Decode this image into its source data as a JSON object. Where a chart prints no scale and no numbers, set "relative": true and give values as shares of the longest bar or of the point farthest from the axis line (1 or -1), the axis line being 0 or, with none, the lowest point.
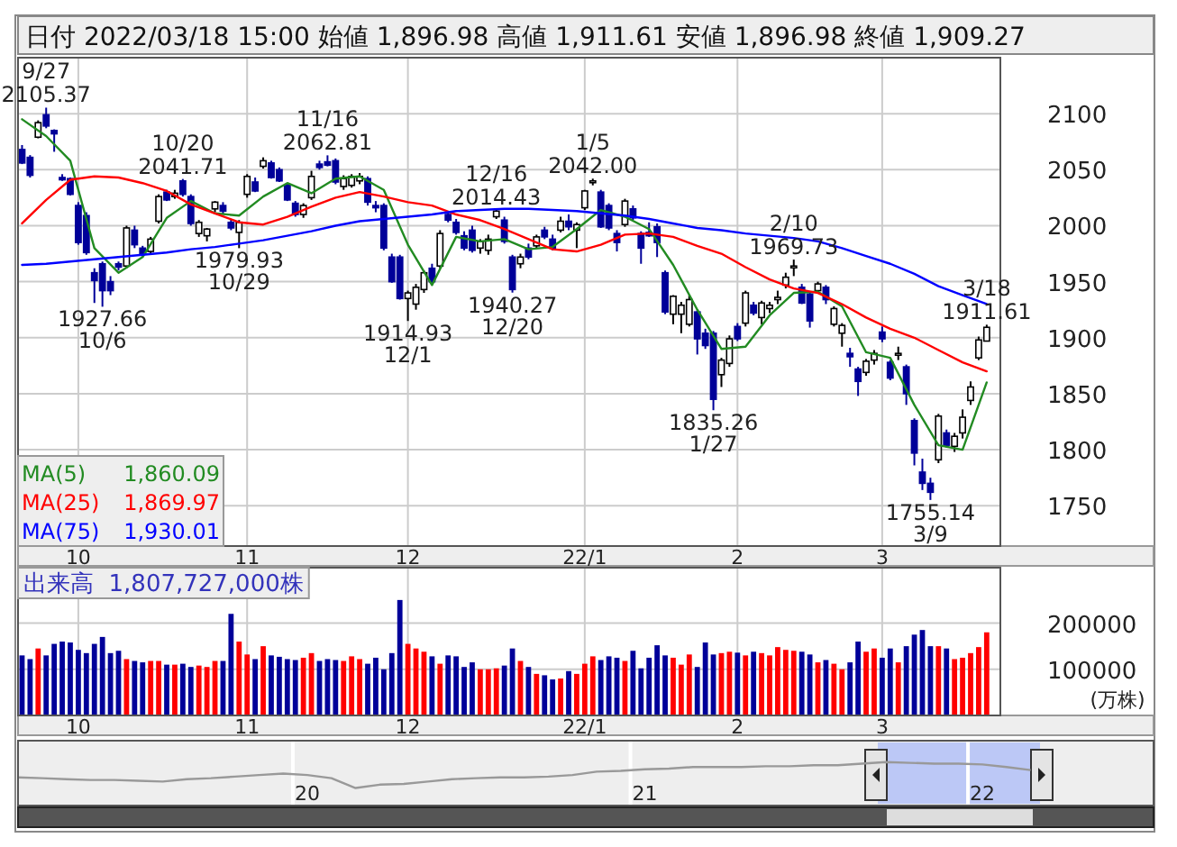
{
  "chart_data": [
    {
      "type": "candlestick",
      "title": "日付 2022/03/18 15:00 始値 1,896.98 高値 1,911.61 安値 1,896.98 終値 1,909.27",
      "categories": [
        null,
        null,
        null,
        null,
        null,
        null,
        null,
        "10",
        null,
        null,
        null,
        null,
        null,
        null,
        null,
        null,
        null,
        null,
        null,
        null,
        null,
        null,
        null,
        null,
        null,
        null,
        null,
        null,
        "11",
        null,
        null,
        null,
        null,
        null,
        null,
        null,
        null,
        null,
        null,
        null,
        null,
        null,
        null,
        null,
        null,
        null,
        null,
        null,
        "12",
        null,
        null,
        null,
        null,
        null,
        null,
        null,
        null,
        null,
        null,
        null,
        null,
        null,
        null,
        null,
        null,
        null,
        null,
        null,
        null,
        null,
        "22/1",
        null,
        null,
        null,
        null,
        null,
        null,
        null,
        null,
        null,
        null,
        null,
        null,
        null,
        null,
        null,
        null,
        null,
        null,
        "2",
        null,
        null,
        null,
        null,
        null,
        null,
        null,
        null,
        null,
        null,
        null,
        null,
        null,
        null,
        null,
        null,
        null,
        "3",
        null,
        null,
        null,
        null,
        null,
        null,
        null,
        null,
        null,
        null,
        null,
        null,
        null
      ],
      "ohlc": [
        [
          2068,
          2072,
          2055,
          2056
        ],
        [
          2061,
          2063,
          2043,
          2045
        ],
        [
          2079,
          2094,
          2078,
          2092
        ],
        [
          2099,
          2105.37,
          2087,
          2089
        ],
        [
          2085,
          2086,
          2066,
          2082
        ],
        [
          2043,
          2046,
          2040,
          2041
        ],
        [
          2042,
          2043,
          2027,
          2028
        ],
        [
          2018,
          2021,
          1983,
          1985
        ],
        [
          2009,
          2012,
          1974,
          1976
        ],
        [
          1958,
          1962,
          1931,
          1951
        ],
        [
          1966,
          1968,
          1927.66,
          1942
        ],
        [
          1950,
          1955,
          1938,
          1942
        ],
        [
          1966,
          1968,
          1960,
          1963
        ],
        [
          1964,
          2000,
          1962,
          1998
        ],
        [
          1996,
          2000,
          1980,
          1983
        ],
        [
          1980,
          1982,
          1972,
          1975
        ],
        [
          1977,
          1990,
          1975,
          1988
        ],
        [
          2004,
          2028,
          2002,
          2026
        ],
        [
          2030,
          2032,
          2022,
          2023
        ],
        [
          2026,
          2032,
          2024,
          2029
        ],
        [
          2040,
          2041.71,
          2026,
          2028
        ],
        [
          2026,
          2028,
          2000,
          2002
        ],
        [
          1993,
          2005,
          1990,
          2003
        ],
        [
          1991,
          1998,
          1986,
          1997
        ],
        [
          2015,
          2022,
          2012,
          2021
        ],
        [
          2018,
          2021,
          2010,
          2013
        ],
        [
          2003,
          2006,
          1996,
          1998
        ],
        [
          1994,
          2005,
          1979.93,
          2003
        ],
        [
          2028,
          2046,
          2025,
          2044
        ],
        [
          2039,
          2043,
          2030,
          2031
        ],
        [
          2053,
          2061,
          2051,
          2058
        ],
        [
          2056,
          2058,
          2042,
          2043
        ],
        [
          2050,
          2052,
          2039,
          2040
        ],
        [
          2036,
          2038,
          2022,
          2023
        ],
        [
          2020,
          2022,
          2008,
          2010
        ],
        [
          2010,
          2020,
          2007,
          2018
        ],
        [
          2025,
          2049,
          2023,
          2044
        ],
        [
          2055,
          2058,
          2050,
          2052
        ],
        [
          2057,
          2062.81,
          2053,
          2054
        ],
        [
          2058,
          2060,
          2037,
          2039
        ],
        [
          2035,
          2045,
          2032,
          2042
        ],
        [
          2036,
          2046,
          2034,
          2044
        ],
        [
          2040,
          2047,
          2037,
          2044
        ],
        [
          2042,
          2044,
          2018,
          2021
        ],
        [
          2018,
          2022,
          2012,
          2016
        ],
        [
          2018,
          2020,
          1978,
          1980
        ],
        [
          1972,
          1975,
          1949,
          1950
        ],
        [
          1972,
          1974,
          1934,
          1935
        ],
        [
          1935,
          1942,
          1914.93,
          1940
        ],
        [
          1930,
          1948,
          1925,
          1945
        ],
        [
          1943,
          1960,
          1940,
          1958
        ],
        [
          1962,
          1966,
          1948,
          1950
        ],
        [
          1964,
          1996,
          1962,
          1993
        ],
        [
          2010,
          2012,
          2003,
          2005
        ],
        [
          2003,
          2006,
          1992,
          1994
        ],
        [
          1991,
          1995,
          1978,
          1980
        ],
        [
          1996,
          2000,
          1976,
          1978
        ],
        [
          1980,
          1988,
          1975,
          1986
        ],
        [
          1978,
          1992,
          1974,
          1988
        ],
        [
          2008,
          2014.43,
          2006,
          2013
        ],
        [
          2005,
          2008,
          1984,
          1986
        ],
        [
          1972,
          1974,
          1940.27,
          1943
        ],
        [
          1966,
          1975,
          1962,
          1972
        ],
        [
          1980,
          1984,
          1970,
          1972
        ],
        [
          1982,
          1992,
          1980,
          1990
        ],
        [
          1996,
          1999,
          1988,
          1990
        ],
        [
          1988,
          1992,
          1978,
          1980
        ],
        [
          1996,
          2008,
          1994,
          2004
        ],
        [
          2004,
          2010,
          1996,
          1999
        ],
        [
          1996,
          2003,
          1980,
          2001
        ],
        [
          2016,
          2032,
          2014,
          2031
        ],
        [
          2039,
          2042,
          2036,
          2040
        ],
        [
          2030,
          2032,
          1998,
          1999
        ],
        [
          2018,
          2020,
          1996,
          1998
        ],
        [
          1993,
          1996,
          1977,
          1985
        ],
        [
          2001,
          2024,
          1999,
          2022
        ],
        [
          2015,
          2018,
          2005,
          2007
        ],
        [
          1993,
          1995,
          1966,
          1980
        ],
        [
          1994,
          2003,
          1990,
          1991
        ],
        [
          1999,
          2002,
          1972,
          1985
        ],
        [
          1958,
          1960,
          1921,
          1923
        ],
        [
          1921,
          1938,
          1912,
          1937
        ],
        [
          1921,
          1932,
          1904,
          1929
        ],
        [
          1912,
          1938,
          1910,
          1934
        ],
        [
          1923,
          1925,
          1885,
          1899
        ],
        [
          1904,
          1908,
          1890,
          1893
        ],
        [
          1904,
          1906,
          1835.26,
          1845
        ],
        [
          1867,
          1882,
          1856,
          1880
        ],
        [
          1877,
          1902,
          1874,
          1899
        ],
        [
          1910,
          1913,
          1897,
          1899
        ],
        [
          1913,
          1942,
          1910,
          1940
        ],
        [
          1929,
          1932,
          1920,
          1922
        ],
        [
          1918,
          1933,
          1912,
          1931
        ],
        [
          1926,
          1932,
          1922,
          1929
        ],
        [
          1934,
          1942,
          1930,
          1936
        ],
        [
          1947,
          1958,
          1944,
          1954
        ],
        [
          1963,
          1969.73,
          1955,
          1964
        ],
        [
          1945,
          1948,
          1930,
          1931
        ],
        [
          1939,
          1941,
          1909,
          1915
        ],
        [
          1942,
          1950,
          1940,
          1948
        ],
        [
          1945,
          1947,
          1930,
          1934
        ],
        [
          1912,
          1928,
          1910,
          1926
        ],
        [
          1904,
          1913,
          1892,
          1911
        ],
        [
          1886,
          1891,
          1874,
          1883
        ],
        [
          1872,
          1874,
          1848,
          1861
        ],
        [
          1869,
          1881,
          1866,
          1879
        ],
        [
          1880,
          1889,
          1876,
          1886
        ],
        [
          1905,
          1910,
          1896,
          1899
        ],
        [
          1878,
          1880,
          1862,
          1864
        ],
        [
          1885,
          1892,
          1880,
          1886
        ],
        [
          1874,
          1876,
          1840,
          1850
        ],
        [
          1826,
          1828,
          1786,
          1797
        ],
        [
          1780,
          1792,
          1764,
          1770
        ],
        [
          1770,
          1775,
          1755.14,
          1762
        ],
        [
          1791,
          1832,
          1788,
          1830
        ],
        [
          1815,
          1818,
          1802,
          1804
        ],
        [
          1803,
          1815,
          1798,
          1812
        ],
        [
          1815,
          1836,
          1810,
          1829
        ],
        [
          1844,
          1861,
          1840,
          1856
        ],
        [
          1882,
          1901,
          1880,
          1898
        ],
        [
          1896.98,
          1911.61,
          1896.98,
          1909.27
        ]
      ],
      "colors": [
        "#000099",
        "#000099",
        "#ffffff",
        "#000099",
        "#000099",
        "#000099",
        "#000099",
        "#000099",
        "#000099",
        "#000099",
        "#000099",
        "#000099",
        "#000099",
        "#ffffff",
        "#000099",
        "#000099",
        "#ffffff",
        "#ffffff",
        "#000099",
        "#ffffff",
        "#000099",
        "#000099",
        "#ffffff",
        "#ffffff",
        "#ffffff",
        "#000099",
        "#000099",
        "#ffffff",
        "#ffffff",
        "#000099",
        "#ffffff",
        "#000099",
        "#000099",
        "#000099",
        "#000099",
        "#ffffff",
        "#ffffff",
        "#000099",
        "#000099",
        "#000099",
        "#ffffff",
        "#ffffff",
        "#ffffff",
        "#000099",
        "#000099",
        "#000099",
        "#000099",
        "#000099",
        "#ffffff",
        "#ffffff",
        "#ffffff",
        "#000099",
        "#ffffff",
        "#000099",
        "#000099",
        "#000099",
        "#000099",
        "#ffffff",
        "#ffffff",
        "#ffffff",
        "#000099",
        "#000099",
        "#ffffff",
        "#000099",
        "#ffffff",
        "#000099",
        "#000099",
        "#ffffff",
        "#000099",
        "#ffffff",
        "#ffffff",
        "#ffffff",
        "#000099",
        "#000099",
        "#000099",
        "#ffffff",
        "#000099",
        "#000099",
        "#000099",
        "#000099",
        "#000099",
        "#ffffff",
        "#ffffff",
        "#ffffff",
        "#000099",
        "#000099",
        "#000099",
        "#ffffff",
        "#ffffff",
        "#000099",
        "#ffffff",
        "#000099",
        "#ffffff",
        "#ffffff",
        "#ffffff",
        "#ffffff",
        "#ffffff",
        "#000099",
        "#000099",
        "#ffffff",
        "#000099",
        "#ffffff",
        "#ffffff",
        "#000099",
        "#000099",
        "#ffffff",
        "#ffffff",
        "#000099",
        "#000099",
        "#ffffff",
        "#000099",
        "#000099",
        "#000099",
        "#000099",
        "#ffffff",
        "#000099",
        "#ffffff",
        "#ffffff",
        "#ffffff",
        "#ffffff",
        "#ffffff"
      ],
      "series": [
        {
          "name": "MA(5)  1,860.09",
          "color": "#228b22",
          "type": "line",
          "values": [
            2095,
            null,
            null,
            2080,
            null,
            null,
            2058,
            null,
            null,
            1980,
            null,
            null,
            1958,
            null,
            null,
            1972,
            null,
            null,
            2007,
            null,
            null,
            2022,
            null,
            null,
            2011,
            null,
            null,
            2009,
            null,
            null,
            2026,
            null,
            null,
            2038,
            null,
            null,
            2029,
            null,
            null,
            2042,
            null,
            null,
            2044,
            null,
            null,
            2032,
            null,
            null,
            1983,
            null,
            null,
            1947,
            null,
            null,
            1990,
            null,
            null,
            1986,
            null,
            null,
            1988,
            null,
            null,
            1979,
            null,
            null,
            1981,
            null,
            null,
            1997,
            null,
            null,
            2014,
            null,
            null,
            2008,
            null,
            null,
            1997,
            null,
            null,
            1965,
            null,
            null,
            1925,
            null,
            null,
            1890,
            null,
            null,
            1892,
            null,
            null,
            1920,
            null,
            null,
            1940,
            null,
            null,
            1941,
            null,
            null,
            1928,
            null,
            null,
            1887,
            null,
            null,
            1882,
            null,
            null,
            1840,
            null,
            null,
            1804,
            null,
            null,
            1800,
            null,
            null,
            1860.09
          ]
        },
        {
          "name": "MA(25)  1,869.97",
          "color": "#ff0000",
          "type": "line",
          "values": [
            2002,
            null,
            null,
            2023,
            null,
            null,
            2041,
            null,
            null,
            2044,
            null,
            null,
            2043,
            null,
            null,
            2038,
            null,
            null,
            2031,
            null,
            null,
            2019,
            null,
            null,
            2011,
            null,
            null,
            2003,
            null,
            null,
            2001,
            null,
            null,
            2008,
            null,
            null,
            2017,
            null,
            null,
            2025,
            null,
            null,
            2030,
            null,
            null,
            2026,
            null,
            null,
            2021,
            null,
            null,
            2018,
            null,
            null,
            2010,
            null,
            null,
            2005,
            null,
            null,
            1997,
            null,
            null,
            1988,
            null,
            null,
            1979,
            null,
            null,
            1977,
            null,
            null,
            1983,
            null,
            null,
            1992,
            null,
            null,
            1993,
            null,
            null,
            1990,
            null,
            null,
            1982,
            null,
            null,
            1975,
            null,
            null,
            1963,
            null,
            null,
            1952,
            null,
            null,
            1944,
            null,
            null,
            1940,
            null,
            null,
            1930,
            null,
            null,
            1918,
            null,
            null,
            1908,
            null,
            null,
            1900,
            null,
            null,
            1889,
            null,
            null,
            1878,
            null,
            null,
            1869.97
          ]
        },
        {
          "name": "MA(75)  1,930.01",
          "color": "#0000ff",
          "type": "line",
          "values": [
            1965,
            null,
            null,
            1966,
            null,
            null,
            1968,
            null,
            null,
            1970,
            null,
            null,
            1972,
            null,
            null,
            1974,
            null,
            null,
            1976,
            null,
            null,
            1979,
            null,
            null,
            1981,
            null,
            null,
            1984,
            null,
            null,
            1987,
            null,
            null,
            1991,
            null,
            null,
            1995,
            null,
            null,
            2000,
            null,
            null,
            2004,
            null,
            null,
            2006,
            null,
            null,
            2008,
            null,
            null,
            2010,
            null,
            null,
            2013,
            null,
            null,
            2014,
            null,
            null,
            2015,
            null,
            null,
            2015,
            null,
            null,
            2014,
            null,
            null,
            2013,
            null,
            null,
            2011,
            null,
            null,
            2009,
            null,
            null,
            2006,
            null,
            null,
            2002,
            null,
            null,
            1998,
            null,
            null,
            1996,
            null,
            null,
            1993,
            null,
            null,
            1991,
            null,
            null,
            1989,
            null,
            null,
            1986,
            null,
            null,
            1980,
            null,
            null,
            1973,
            null,
            null,
            1966,
            null,
            null,
            1957,
            null,
            null,
            1946,
            null,
            null,
            1938,
            null,
            null,
            1930.01
          ]
        }
      ],
      "ylim": [
        1714,
        2150
      ],
      "yticks": [
        1750,
        1800,
        1850,
        1900,
        1950,
        2000,
        2050,
        2100
      ],
      "grid": true,
      "legend": "bottom left",
      "annotations": [
        {
          "text": "9/27\n2105.37",
          "y": 2105.37
        },
        {
          "text": "1927.66\n10/6",
          "y": 1927.66
        },
        {
          "text": "10/20\n2041.71",
          "y": 2041.71
        },
        {
          "text": "1979.93\n10/29",
          "y": 1979.93
        },
        {
          "text": "11/16\n2062.81",
          "y": 2062.81
        },
        {
          "text": "1914.93\n12/1",
          "y": 1914.93
        },
        {
          "text": "12/16\n2014.43",
          "y": 2014.43
        },
        {
          "text": "1940.27\n12/20",
          "y": 1940.27
        },
        {
          "text": "1/5\n2042.00",
          "y": 2042
        },
        {
          "text": "1835.26\n1/27",
          "y": 1835.26
        },
        {
          "text": "2/10\n1969.73",
          "y": 1969.73
        },
        {
          "text": "1755.14\n3/9",
          "y": 1755.14
        },
        {
          "text": "3/18\n1911.61",
          "y": 1911.61
        }
      ]
    },
    {
      "type": "bar",
      "title": "出来高  1,807,727,000株",
      "ylabel": "(万株)",
      "categories": [
        null,
        null,
        null,
        null,
        null,
        null,
        null,
        "10",
        null,
        null,
        null,
        null,
        null,
        null,
        null,
        null,
        null,
        null,
        null,
        null,
        null,
        null,
        null,
        null,
        null,
        null,
        null,
        null,
        "11",
        null,
        null,
        null,
        null,
        null,
        null,
        null,
        null,
        null,
        null,
        null,
        null,
        null,
        null,
        null,
        null,
        null,
        null,
        null,
        "12",
        null,
        null,
        null,
        null,
        null,
        null,
        null,
        null,
        null,
        null,
        null,
        null,
        null,
        null,
        null,
        null,
        null,
        null,
        null,
        null,
        null,
        "22/1",
        null,
        null,
        null,
        null,
        null,
        null,
        null,
        null,
        null,
        null,
        null,
        null,
        null,
        null,
        null,
        null,
        null,
        null,
        "2",
        null,
        null,
        null,
        null,
        null,
        null,
        null,
        null,
        null,
        null,
        null,
        null,
        null,
        null,
        null,
        null,
        null,
        "3",
        null,
        null,
        null,
        null,
        null,
        null,
        null,
        null,
        null,
        null,
        null,
        null,
        null
      ],
      "values": [
        130000,
        122000,
        145000,
        130000,
        155000,
        160000,
        158000,
        142000,
        135000,
        155000,
        170000,
        135000,
        140000,
        122000,
        118000,
        115000,
        118000,
        118000,
        110000,
        110000,
        112000,
        105000,
        108000,
        105000,
        118000,
        118000,
        220000,
        160000,
        132000,
        122000,
        150000,
        130000,
        127000,
        122000,
        120000,
        125000,
        135000,
        118000,
        122000,
        120000,
        118000,
        128000,
        122000,
        112000,
        125000,
        100000,
        135000,
        250000,
        155000,
        145000,
        138000,
        128000,
        112000,
        130000,
        128000,
        105000,
        115000,
        100000,
        100000,
        102000,
        108000,
        145000,
        118000,
        105000,
        90000,
        87000,
        78000,
        80000,
        96000,
        90000,
        112000,
        128000,
        120000,
        128000,
        125000,
        118000,
        140000,
        102000,
        125000,
        152000,
        130000,
        125000,
        110000,
        132000,
        105000,
        158000,
        132000,
        135000,
        138000,
        136000,
        130000,
        138000,
        135000,
        130000,
        148000,
        142000,
        140000,
        138000,
        132000,
        115000,
        120000,
        112000,
        100000,
        115000,
        160000,
        138000,
        145000,
        125000,
        145000,
        115000,
        150000,
        175000,
        185000,
        150000,
        150000,
        145000,
        122000,
        125000,
        135000,
        148000,
        180000
      ],
      "colors": [
        "#000099",
        "#000099",
        "#ff0000",
        "#000099",
        "#000099",
        "#000099",
        "#000099",
        "#000099",
        "#000099",
        "#000099",
        "#000099",
        "#000099",
        "#000099",
        "#ff0000",
        "#000099",
        "#000099",
        "#ff0000",
        "#ff0000",
        "#000099",
        "#ff0000",
        "#000099",
        "#000099",
        "#ff0000",
        "#ff0000",
        "#ff0000",
        "#000099",
        "#000099",
        "#ff0000",
        "#ff0000",
        "#000099",
        "#ff0000",
        "#000099",
        "#000099",
        "#000099",
        "#000099",
        "#ff0000",
        "#ff0000",
        "#000099",
        "#000099",
        "#000099",
        "#ff0000",
        "#ff0000",
        "#ff0000",
        "#000099",
        "#000099",
        "#000099",
        "#000099",
        "#000099",
        "#ff0000",
        "#ff0000",
        "#ff0000",
        "#000099",
        "#ff0000",
        "#000099",
        "#000099",
        "#000099",
        "#000099",
        "#ff0000",
        "#ff0000",
        "#ff0000",
        "#000099",
        "#000099",
        "#ff0000",
        "#000099",
        "#ff0000",
        "#000099",
        "#000099",
        "#ff0000",
        "#000099",
        "#ff0000",
        "#ff0000",
        "#ff0000",
        "#000099",
        "#000099",
        "#000099",
        "#ff0000",
        "#000099",
        "#000099",
        "#000099",
        "#000099",
        "#000099",
        "#ff0000",
        "#ff0000",
        "#ff0000",
        "#000099",
        "#000099",
        "#000099",
        "#ff0000",
        "#ff0000",
        "#000099",
        "#ff0000",
        "#000099",
        "#ff0000",
        "#ff0000",
        "#ff0000",
        "#ff0000",
        "#ff0000",
        "#000099",
        "#000099",
        "#ff0000",
        "#000099",
        "#ff0000",
        "#ff0000",
        "#000099",
        "#000099",
        "#ff0000",
        "#ff0000",
        "#000099",
        "#000099",
        "#ff0000",
        "#000099",
        "#000099",
        "#000099",
        "#000099",
        "#ff0000",
        "#000099",
        "#ff0000",
        "#ff0000",
        "#ff0000",
        "#ff0000",
        "#ff0000"
      ],
      "ylim": [
        0,
        320000
      ],
      "yticks": [
        100000,
        200000
      ],
      "grid": true
    },
    {
      "type": "line",
      "relative": true,
      "color": "#999999",
      "grid": "x",
      "categories": [
        null,
        null,
        null,
        null,
        null,
        null,
        null,
        null,
        null,
        null,
        null,
        null,
        "20",
        null,
        null,
        null,
        null,
        null,
        null,
        null,
        null,
        null,
        null,
        null,
        null,
        null,
        "21",
        null,
        null,
        null,
        null,
        null,
        null,
        null,
        null,
        null,
        null,
        null,
        null,
        null,
        "22",
        null,
        null
      ],
      "values": [
        0.41,
        0.38,
        0.34,
        0.31,
        0.31,
        0.28,
        0.25,
        0.34,
        0.38,
        0.44,
        0.5,
        0.56,
        0.5,
        0.38,
        0,
        0.13,
        0.16,
        0.25,
        0.34,
        0.38,
        0.41,
        0.41,
        0.44,
        0.5,
        0.63,
        0.66,
        0.72,
        0.75,
        0.81,
        0.81,
        0.81,
        0.84,
        0.84,
        0.88,
        0.88,
        0.94,
        1,
        0.97,
        0.94,
        0.94,
        0.91,
        0.81,
        0.69
      ]
    }
  ]
}
